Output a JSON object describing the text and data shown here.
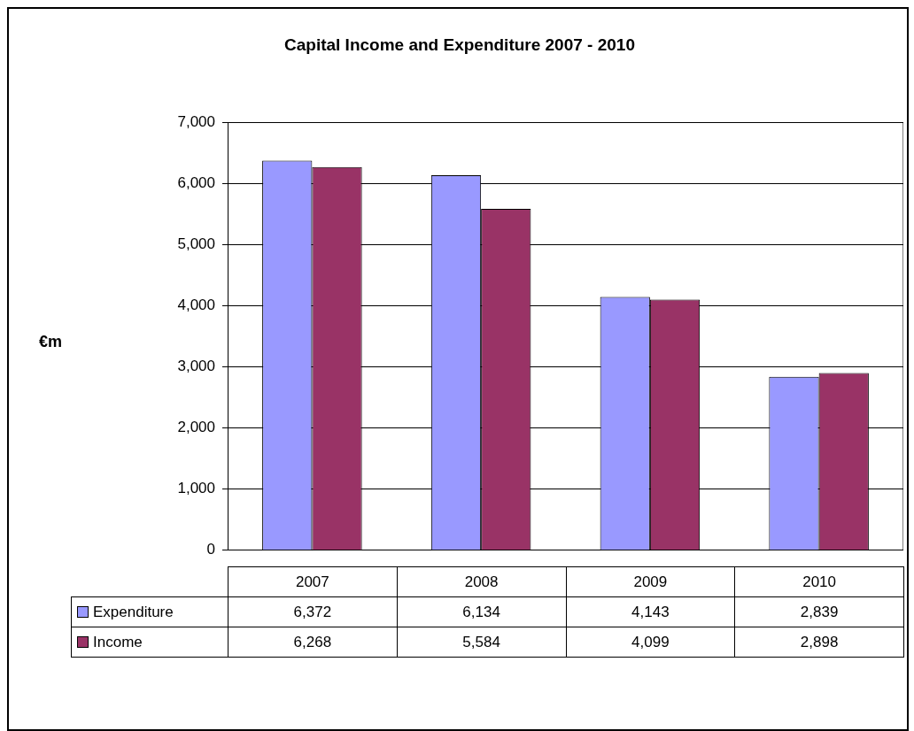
{
  "chart_data": {
    "type": "bar",
    "title": "Capital Income and Expenditure 2007 - 2010",
    "annotations": [
      "€m"
    ],
    "categories": [
      "2007",
      "2008",
      "2009",
      "2010"
    ],
    "series": [
      {
        "name": "Expenditure",
        "color": "#9999ff",
        "values": [
          6372,
          6134,
          4143,
          2839
        ],
        "value_labels": [
          "6,372",
          "6,134",
          "4,143",
          "2,839"
        ]
      },
      {
        "name": "Income",
        "color": "#993366",
        "values": [
          6268,
          5584,
          4099,
          2898
        ],
        "value_labels": [
          "6,268",
          "5,584",
          "4,099",
          "2,898"
        ]
      }
    ],
    "ylim": [
      0,
      7000
    ],
    "yticks": [
      {
        "value": 0,
        "label": "0"
      },
      {
        "value": 1000,
        "label": "1,000"
      },
      {
        "value": 2000,
        "label": "2,000"
      },
      {
        "value": 3000,
        "label": "3,000"
      },
      {
        "value": 4000,
        "label": "4,000"
      },
      {
        "value": 5000,
        "label": "5,000"
      },
      {
        "value": 6000,
        "label": "6,000"
      },
      {
        "value": 7000,
        "label": "7,000"
      }
    ],
    "grid": "y",
    "legend": "bottom"
  }
}
